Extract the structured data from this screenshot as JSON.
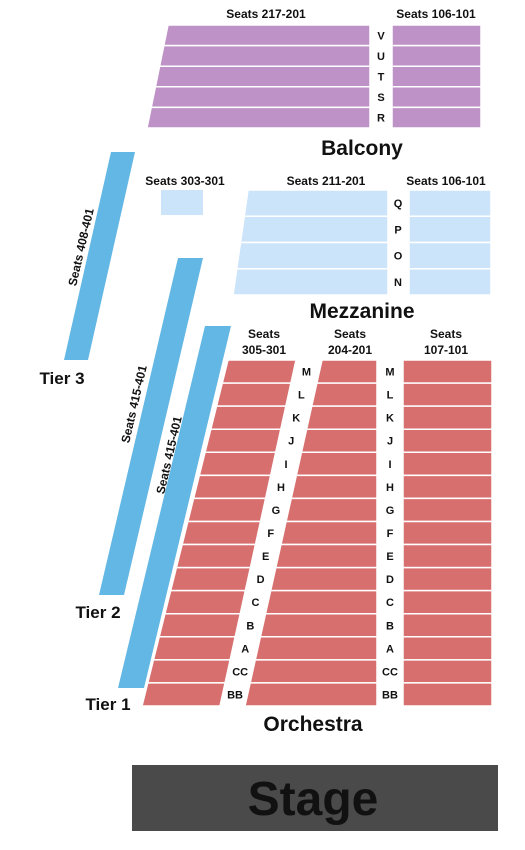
{
  "colors": {
    "balcony": "#BE92C7",
    "mezzanine": "#CCE4FA",
    "orchestra": "#D86F6F",
    "tier": "#63B7E4",
    "stage": "#4A4A4A",
    "stage_text": "#FFFFFF",
    "text": "#111111"
  },
  "stage": {
    "label": "Stage"
  },
  "balcony": {
    "name": "Balcony",
    "left_label": "Seats 217-201",
    "right_label": "Seats 106-101",
    "rows": [
      "V",
      "U",
      "T",
      "S",
      "R"
    ]
  },
  "mezzanine": {
    "name": "Mezzanine",
    "side_label": "Seats 303-301",
    "center_label": "Seats 211-201",
    "right_label": "Seats 106-101",
    "rows": [
      "Q",
      "P",
      "O",
      "N"
    ]
  },
  "orchestra": {
    "name": "Orchestra",
    "left_label": [
      "Seats",
      "305-301"
    ],
    "center_label": [
      "Seats",
      "204-201"
    ],
    "right_label": [
      "Seats",
      "107-101"
    ],
    "rows": [
      "M",
      "L",
      "K",
      "J",
      "I",
      "H",
      "G",
      "F",
      "E",
      "D",
      "C",
      "B",
      "A",
      "CC",
      "BB"
    ]
  },
  "tiers": [
    {
      "name": "Tier 3",
      "seats": "Seats 408-401"
    },
    {
      "name": "Tier 2",
      "seats": "Seats 415-401"
    },
    {
      "name": "Tier 1",
      "seats": "Seats 415-401"
    }
  ]
}
